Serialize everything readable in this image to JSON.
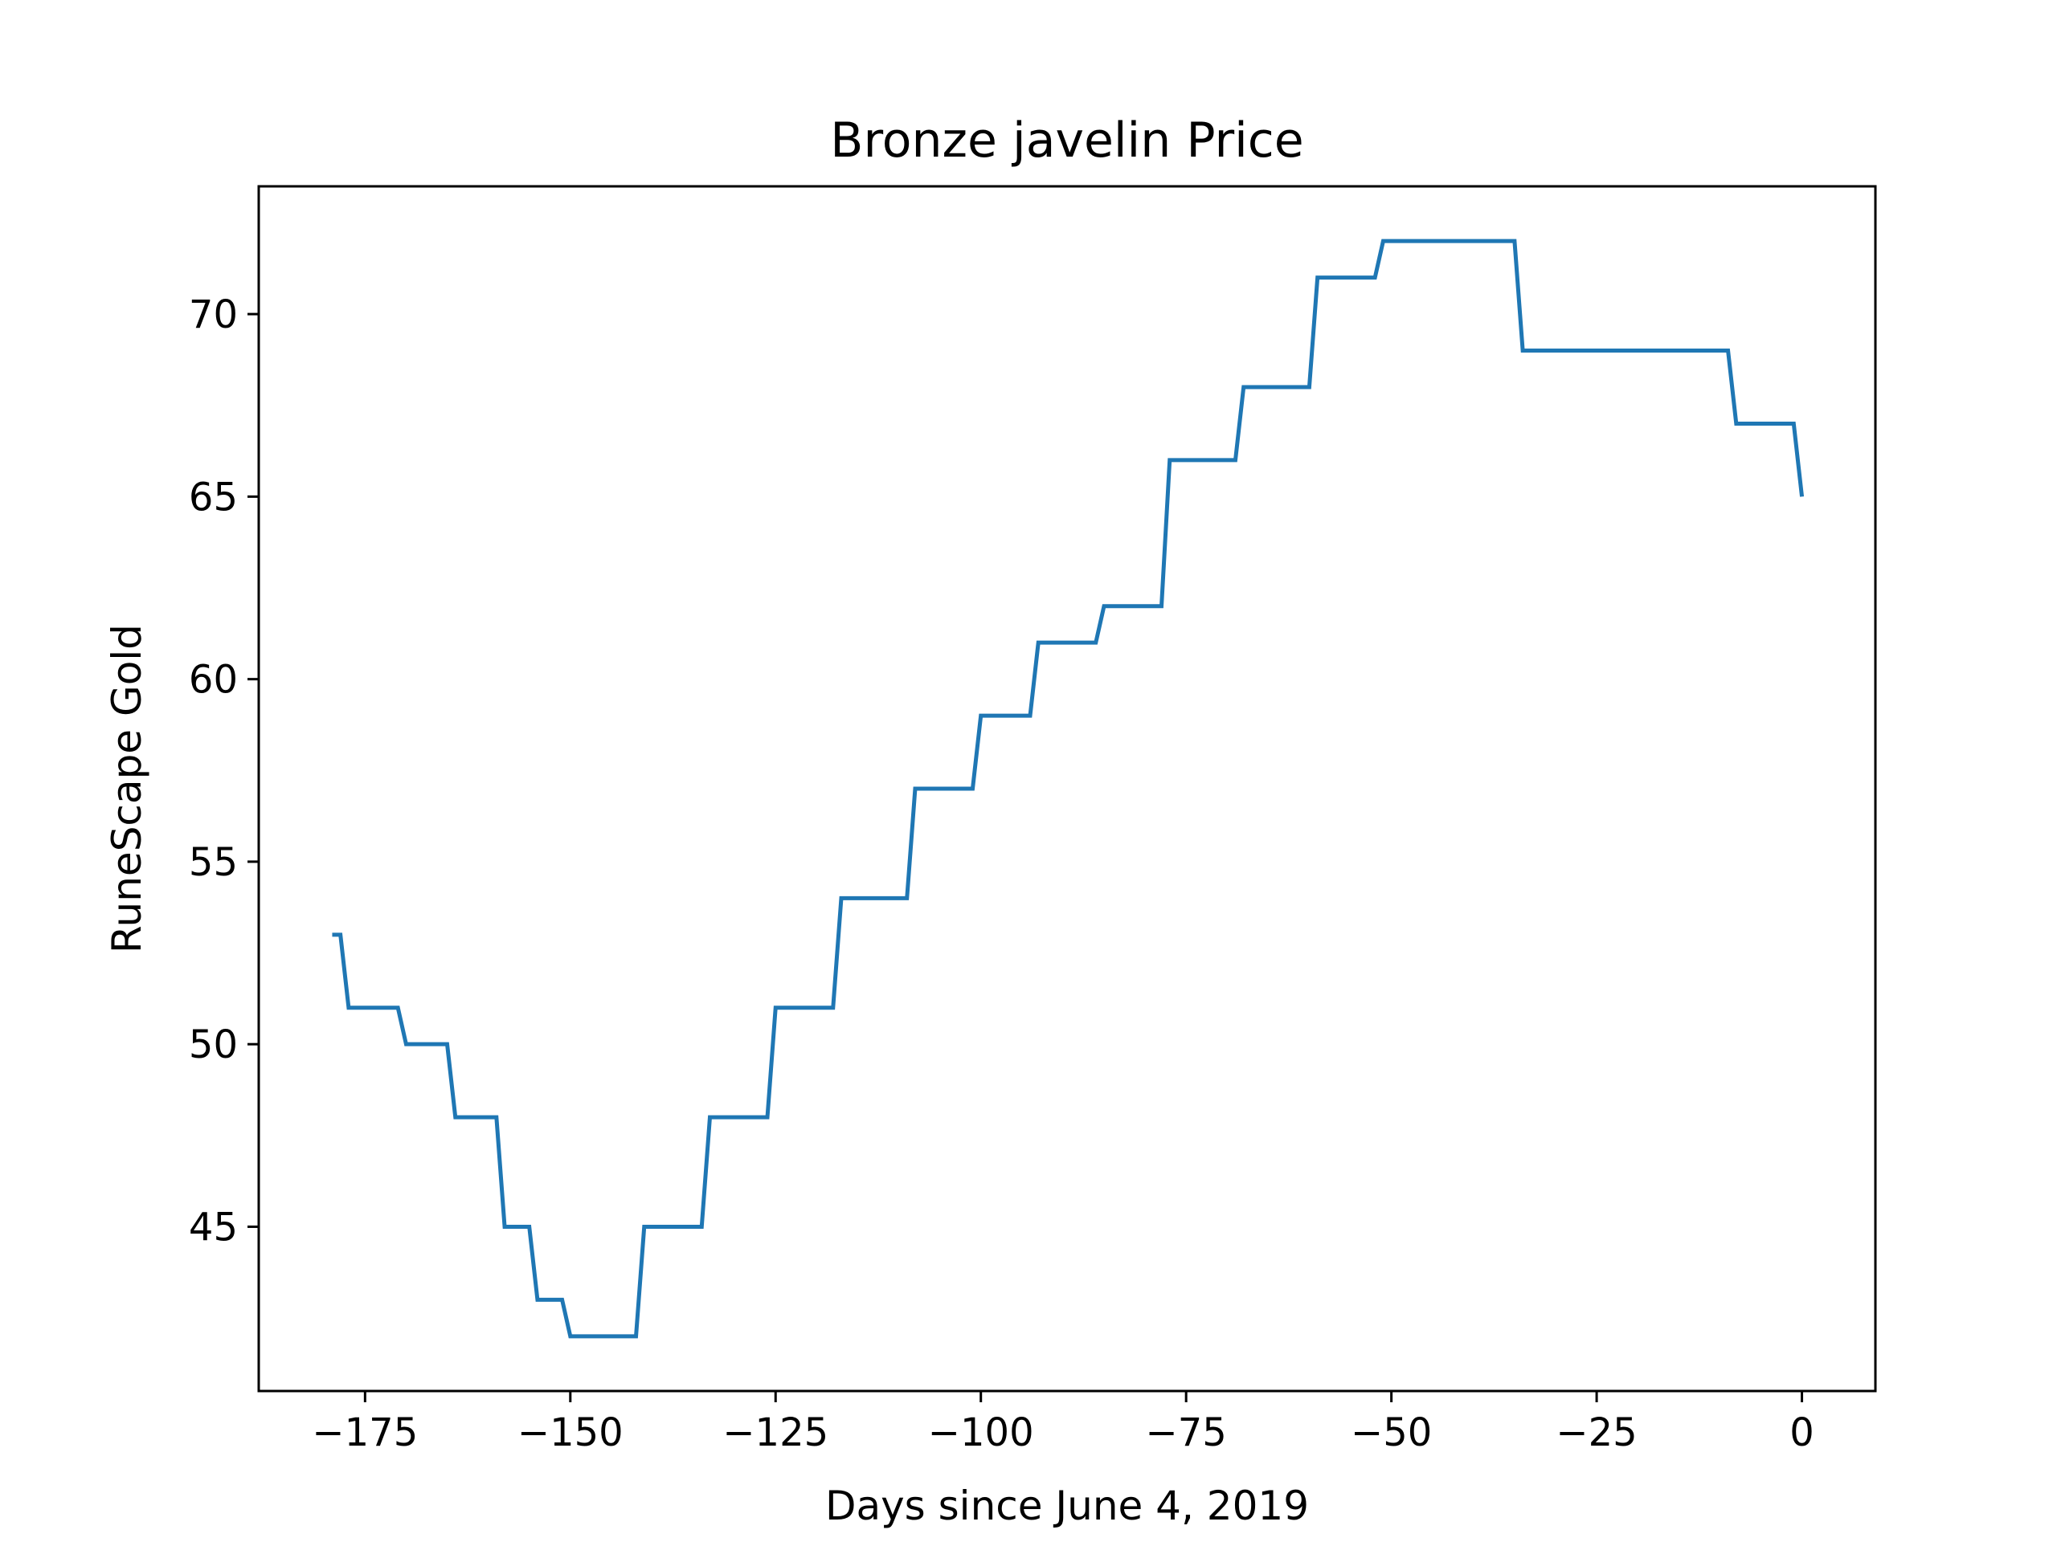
{
  "chart_data": {
    "type": "line",
    "title": "Bronze javelin Price",
    "xlabel": "Days since June 4, 2019",
    "ylabel": "RuneScape Gold",
    "xlim": [
      -187.95,
      8.95
    ],
    "ylim": [
      40.5,
      73.5
    ],
    "xticks": [
      -175,
      -150,
      -125,
      -100,
      -75,
      -50,
      -25,
      0
    ],
    "xtick_labels": [
      "−175",
      "−150",
      "−125",
      "−100",
      "−75",
      "−50",
      "−25",
      "0"
    ],
    "yticks": [
      45,
      50,
      55,
      60,
      65,
      70
    ],
    "ytick_labels": [
      "45",
      "50",
      "55",
      "60",
      "65",
      "70"
    ],
    "grid": false,
    "series": [
      {
        "color": "#1f77b4",
        "x": [
          -179,
          -178,
          -177,
          -171,
          -170,
          -165,
          -164,
          -159,
          -158,
          -155,
          -154,
          -151,
          -150,
          -142,
          -141,
          -134,
          -133,
          -126,
          -125,
          -118,
          -117,
          -109,
          -108,
          -101,
          -100,
          -94,
          -93,
          -86,
          -85,
          -78,
          -77,
          -69,
          -68,
          -60,
          -59,
          -52,
          -51,
          -35,
          -34,
          -9,
          -8,
          -1,
          0
        ],
        "y": [
          53,
          53,
          51,
          51,
          50,
          50,
          48,
          48,
          45,
          45,
          43,
          43,
          42,
          42,
          45,
          45,
          48,
          48,
          51,
          51,
          54,
          54,
          57,
          57,
          59,
          59,
          61,
          61,
          62,
          62,
          66,
          66,
          68,
          68,
          71,
          71,
          72,
          72,
          69,
          69,
          67,
          67,
          65
        ]
      }
    ]
  }
}
